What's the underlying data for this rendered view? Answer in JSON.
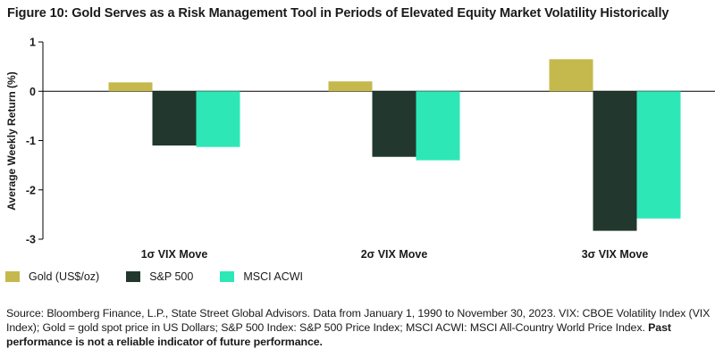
{
  "title": "Figure 10: Gold Serves as a Risk Management Tool in Periods of Elevated Equity Market Volatility Historically",
  "chart_data": {
    "type": "bar",
    "categories": [
      "1σ VIX Move",
      "2σ VIX Move",
      "3σ VIX Move"
    ],
    "series": [
      {
        "name": "Gold (US$/oz)",
        "color": "#c5b94e",
        "values": [
          0.18,
          0.2,
          0.65
        ]
      },
      {
        "name": "S&P 500",
        "color": "#22382e",
        "values": [
          -1.1,
          -1.33,
          -2.83
        ]
      },
      {
        "name": "MSCI ACWI",
        "color": "#2de8b6",
        "values": [
          -1.13,
          -1.4,
          -2.58
        ]
      }
    ],
    "ylabel": "Average Weekly Return (%)",
    "ylim": [
      -3,
      1
    ],
    "yticks": [
      1,
      0,
      -1,
      -2,
      -3
    ],
    "grid": false,
    "legend": "bottom-left"
  },
  "legend_items": [
    "Gold (US$/oz)",
    "S&P 500",
    "MSCI ACWI"
  ],
  "source_text": "Source: Bloomberg Finance, L.P., State Street Global Advisors. Data from January 1, 1990 to November 30, 2023. VIX: CBOE Volatility Index (VIX Index); Gold = gold spot price in US Dollars; S&P 500 Index: S&P 500 Price Index; MSCI ACWI: MSCI All-Country World Price Index.",
  "disclaimer": "Past performance is not a reliable indicator of future performance."
}
